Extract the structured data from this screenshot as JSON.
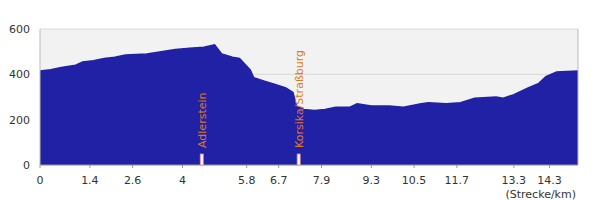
{
  "chart_data": {
    "type": "area",
    "x_label": "(Strecke/km)",
    "x": [
      0,
      0.3,
      0.6,
      1.0,
      1.2,
      1.5,
      1.8,
      2.1,
      2.4,
      3.0,
      3.4,
      3.8,
      4.2,
      4.6,
      4.9,
      5.1,
      5.4,
      5.6,
      5.9,
      6.0,
      6.3,
      6.6,
      6.9,
      7.1,
      7.2,
      7.4,
      7.7,
      8.0,
      8.3,
      8.7,
      8.9,
      9.3,
      9.8,
      10.2,
      10.7,
      10.9,
      11.4,
      11.8,
      12.2,
      12.8,
      13.0,
      13.3,
      13.7,
      14.0,
      14.2,
      14.5,
      15.1
    ],
    "values": [
      415,
      420,
      430,
      440,
      455,
      460,
      470,
      475,
      485,
      490,
      500,
      510,
      515,
      520,
      530,
      490,
      475,
      470,
      420,
      385,
      370,
      355,
      340,
      320,
      260,
      245,
      240,
      245,
      255,
      255,
      270,
      260,
      260,
      255,
      270,
      275,
      270,
      275,
      295,
      300,
      295,
      310,
      340,
      360,
      390,
      410,
      415
    ],
    "color": "#2121a6",
    "xlim": [
      0,
      15.1
    ],
    "ylim": [
      0,
      600
    ],
    "xticks": [
      0,
      1.4,
      2.6,
      4,
      5.8,
      6.7,
      7.9,
      9.3,
      10.5,
      11.7,
      13.3,
      14.3
    ],
    "yticks": [
      0,
      200,
      400,
      600
    ],
    "grid": true,
    "annotations": [
      {
        "x": 4.54,
        "label": "Adlerstein"
      },
      {
        "x": 7.26,
        "label": "Korsika/Straßburg"
      }
    ]
  }
}
